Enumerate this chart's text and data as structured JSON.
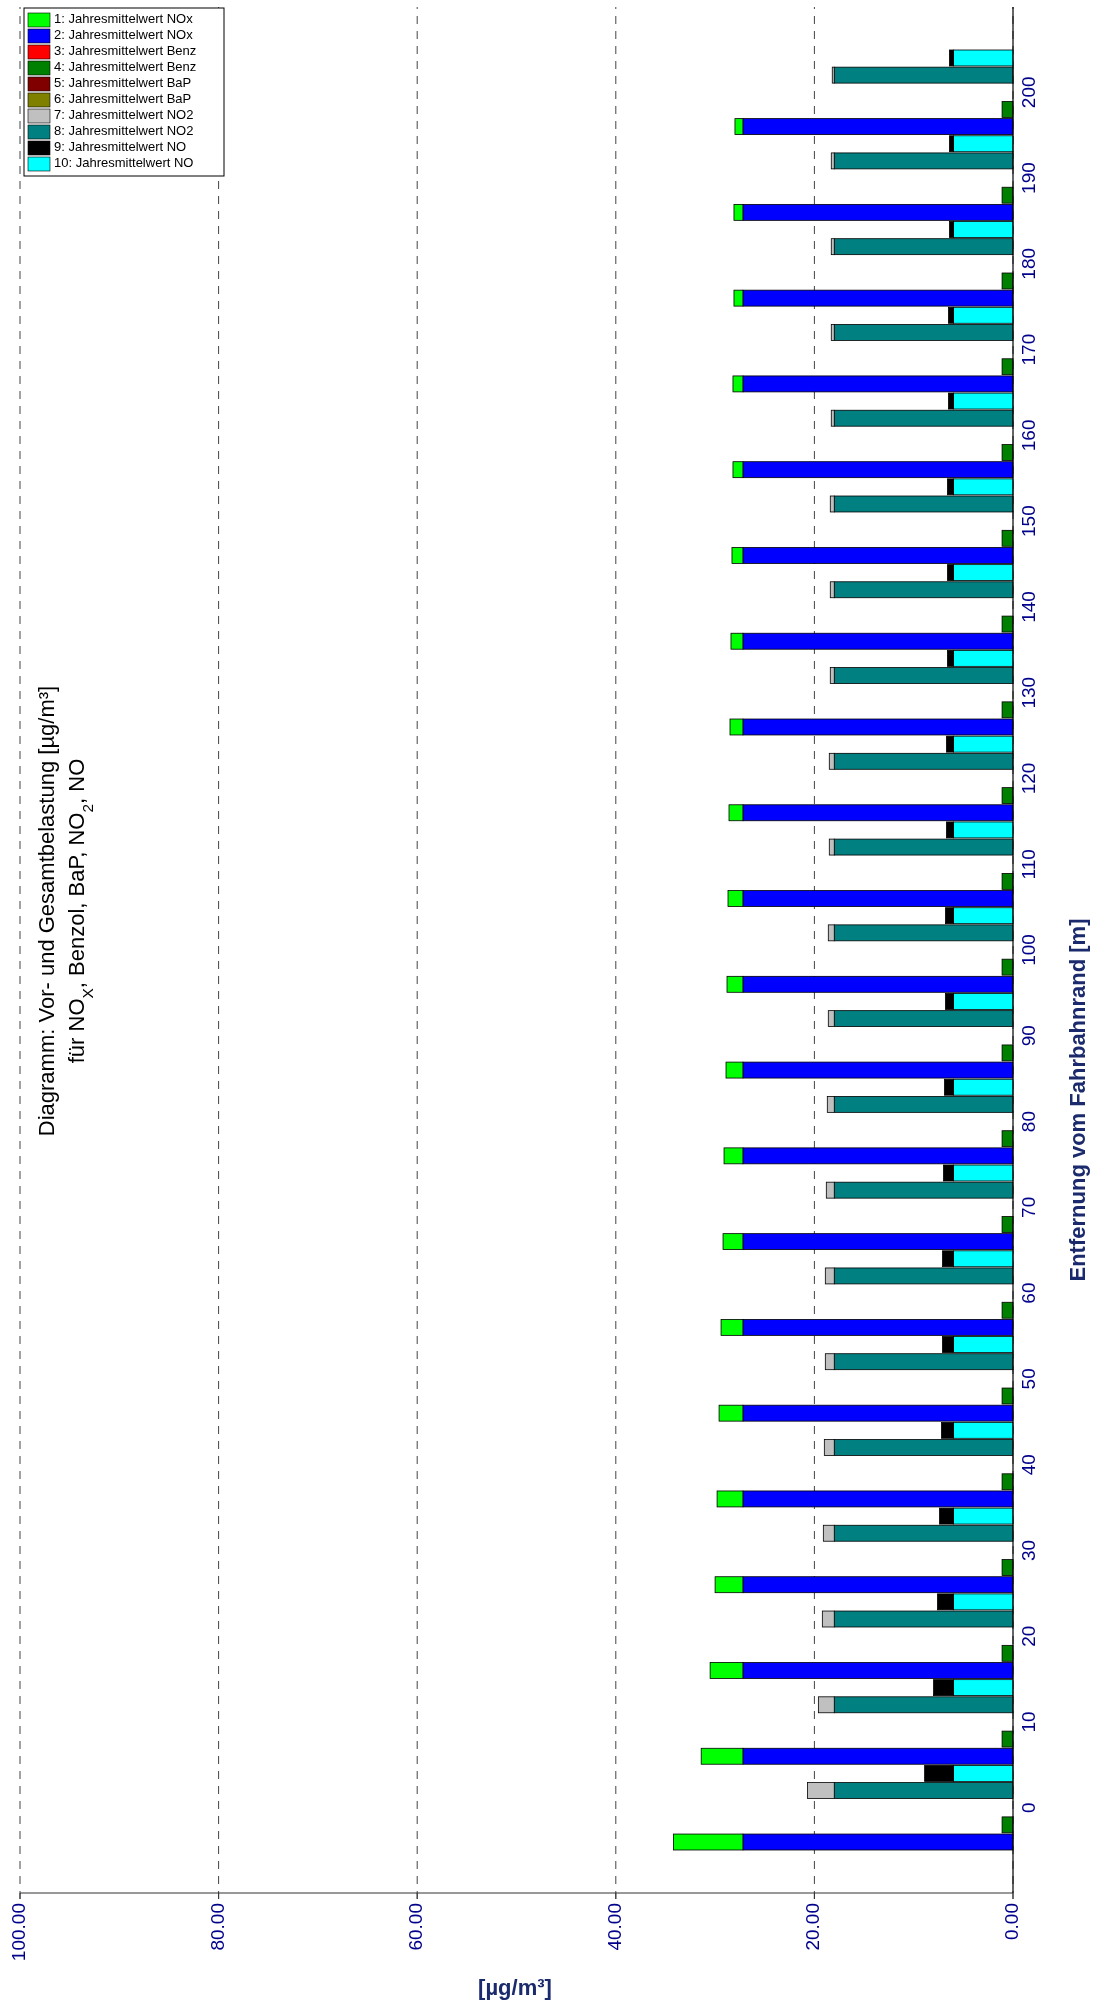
{
  "chart_data": {
    "type": "bar",
    "stacked": true,
    "orientation": "horizontal",
    "title": "Diagramm: Vor- und Gesamtbelastung [µg/m³]",
    "subtitle": "für NO$_{X}$, Benzol, BaP, NO$_{2}$, NO",
    "xlabel": "[µg/m³]",
    "ylabel": "Entfernung vom Fahrbahnrand [m]",
    "categories": [
      null,
      null,
      "200",
      null,
      null,
      null,
      null,
      "190",
      null,
      null,
      null,
      null,
      "180",
      null,
      null,
      null,
      null,
      "170",
      null,
      null,
      null,
      null,
      "160",
      null,
      null,
      null,
      null,
      "150",
      null,
      null,
      null,
      null,
      "140",
      null,
      null,
      null,
      null,
      "130",
      null,
      null,
      null,
      null,
      "120",
      null,
      null,
      null,
      null,
      "110",
      null,
      null,
      null,
      null,
      "100",
      null,
      null,
      null,
      null,
      "90",
      null,
      null,
      null,
      null,
      "80",
      null,
      null,
      null,
      null,
      "70",
      null,
      null,
      null,
      null,
      "60",
      null,
      null,
      null,
      null,
      "50",
      null,
      null,
      null,
      null,
      "40",
      null,
      null,
      null,
      null,
      "30",
      null,
      null,
      null,
      null,
      "20",
      null,
      null,
      null,
      null,
      "10",
      null,
      null,
      null,
      null,
      "0",
      null,
      null
    ],
    "xlim": [
      100,
      0
    ],
    "xticks": [
      {
        "value": 100,
        "label": "100.00"
      },
      {
        "value": 80,
        "label": "80.00"
      },
      {
        "value": 60,
        "label": "60.00"
      },
      {
        "value": 40,
        "label": "40.00"
      },
      {
        "value": 20,
        "label": "20.00"
      },
      {
        "value": 0,
        "label": "0.00"
      }
    ],
    "grid": "x",
    "legend": "top left",
    "series": [
      {
        "name": "2: Jahresmittelwert NOx",
        "color": "#0000ff",
        "values": [
          null,
          null,
          null,
          null,
          27.2,
          null,
          null,
          null,
          null,
          27.2,
          null,
          null,
          null,
          null,
          27.2,
          null,
          null,
          null,
          null,
          27.2,
          null,
          null,
          null,
          null,
          27.2,
          null,
          null,
          null,
          null,
          27.2,
          null,
          null,
          null,
          null,
          27.2,
          null,
          null,
          null,
          null,
          27.2,
          null,
          null,
          null,
          null,
          27.2,
          null,
          null,
          null,
          null,
          27.2,
          null,
          null,
          null,
          null,
          27.2,
          null,
          null,
          null,
          null,
          27.2,
          null,
          null,
          null,
          null,
          27.2,
          null,
          null,
          null,
          null,
          27.2,
          null,
          null,
          null,
          null,
          27.2,
          null,
          null,
          null,
          null,
          27.2,
          null,
          null,
          null,
          null,
          27.2,
          null,
          null,
          null,
          null,
          27.2,
          null,
          null,
          null,
          null,
          27.2,
          null,
          null,
          null,
          null,
          27.2,
          null,
          null,
          null,
          null,
          27.2
        ]
      },
      {
        "name": "1: Jahresmittelwert NOx",
        "color": "#00ff00",
        "values": [
          null,
          null,
          null,
          null,
          0.8,
          null,
          null,
          null,
          null,
          0.9,
          null,
          null,
          null,
          null,
          0.9,
          null,
          null,
          null,
          null,
          1.0,
          null,
          null,
          null,
          null,
          1.0,
          null,
          null,
          null,
          null,
          1.1,
          null,
          null,
          null,
          null,
          1.2,
          null,
          null,
          null,
          null,
          1.3,
          null,
          null,
          null,
          null,
          1.4,
          null,
          null,
          null,
          null,
          1.5,
          null,
          null,
          null,
          null,
          1.6,
          null,
          null,
          null,
          null,
          1.7,
          null,
          null,
          null,
          null,
          1.9,
          null,
          null,
          null,
          null,
          2.0,
          null,
          null,
          null,
          null,
          2.2,
          null,
          null,
          null,
          null,
          2.4,
          null,
          null,
          null,
          null,
          2.6,
          null,
          null,
          null,
          null,
          2.8,
          null,
          null,
          null,
          null,
          3.3,
          null,
          null,
          null,
          null,
          4.2,
          null,
          null,
          null,
          null,
          7.0
        ]
      },
      {
        "name": "4: Jahresmittelwert Benz",
        "color": "#008000",
        "values": [
          null,
          null,
          null,
          1.1,
          null,
          null,
          null,
          null,
          1.1,
          null,
          null,
          null,
          null,
          1.1,
          null,
          null,
          null,
          null,
          1.1,
          null,
          null,
          null,
          null,
          1.1,
          null,
          null,
          null,
          null,
          1.1,
          null,
          null,
          null,
          null,
          1.1,
          null,
          null,
          null,
          null,
          1.1,
          null,
          null,
          null,
          null,
          1.1,
          null,
          null,
          null,
          null,
          1.1,
          null,
          null,
          null,
          null,
          1.1,
          null,
          null,
          null,
          null,
          1.1,
          null,
          null,
          null,
          null,
          1.1,
          null,
          null,
          null,
          null,
          1.1,
          null,
          null,
          null,
          null,
          1.1,
          null,
          null,
          null,
          null,
          1.1,
          null,
          null,
          null,
          null,
          1.1,
          null,
          null,
          null,
          null,
          1.1,
          null,
          null,
          null,
          null,
          1.1,
          null,
          null,
          null,
          null,
          1.1,
          null,
          null,
          null,
          null,
          1.1,
          null
        ]
      },
      {
        "name": "3: Jahresmittelwert Benz",
        "color": "#ff0000",
        "values": [
          null,
          null,
          null,
          0,
          null,
          null,
          null,
          null,
          0,
          null,
          null,
          null,
          null,
          0,
          null,
          null,
          null,
          null,
          0,
          null,
          null,
          null,
          null,
          0,
          null,
          null,
          null,
          null,
          0,
          null,
          null,
          null,
          null,
          0,
          null,
          null,
          null,
          null,
          0,
          null,
          null,
          null,
          null,
          0,
          null,
          null,
          null,
          null,
          0,
          null,
          null,
          null,
          null,
          0,
          null,
          null,
          null,
          null,
          0,
          null,
          null,
          null,
          null,
          0,
          null,
          null,
          null,
          null,
          0,
          null,
          null,
          null,
          null,
          0,
          null,
          null,
          null,
          null,
          0,
          null,
          null,
          null,
          null,
          0,
          null,
          null,
          null,
          null,
          0,
          null,
          null,
          null,
          null,
          0,
          null,
          null,
          null,
          null,
          0,
          null,
          null,
          null,
          null,
          0,
          null
        ]
      },
      {
        "name": "6: Jahresmittelwert BaP",
        "color": "#808000",
        "values": [
          null,
          null,
          0,
          null,
          null,
          null,
          null,
          0,
          null,
          null,
          null,
          null,
          0,
          null,
          null,
          null,
          null,
          0,
          null,
          null,
          null,
          null,
          0,
          null,
          null,
          null,
          null,
          0,
          null,
          null,
          null,
          null,
          0,
          null,
          null,
          null,
          null,
          0,
          null,
          null,
          null,
          null,
          0,
          null,
          null,
          null,
          null,
          0,
          null,
          null,
          null,
          null,
          0,
          null,
          null,
          null,
          null,
          0,
          null,
          null,
          null,
          null,
          0,
          null,
          null,
          null,
          null,
          0,
          null,
          null,
          null,
          null,
          0,
          null,
          null,
          null,
          null,
          0,
          null,
          null,
          null,
          null,
          0,
          null,
          null,
          null,
          null,
          0,
          null,
          null,
          null,
          null,
          0,
          null,
          null,
          null,
          null,
          0,
          null,
          null,
          null,
          null,
          0,
          null,
          null
        ]
      },
      {
        "name": "5: Jahresmittelwert BaP",
        "color": "#800000",
        "values": [
          null,
          null,
          0,
          null,
          null,
          null,
          null,
          0,
          null,
          null,
          null,
          null,
          0,
          null,
          null,
          null,
          null,
          0,
          null,
          null,
          null,
          null,
          0,
          null,
          null,
          null,
          null,
          0,
          null,
          null,
          null,
          null,
          0,
          null,
          null,
          null,
          null,
          0,
          null,
          null,
          null,
          null,
          0,
          null,
          null,
          null,
          null,
          0,
          null,
          null,
          null,
          null,
          0,
          null,
          null,
          null,
          null,
          0,
          null,
          null,
          null,
          null,
          0,
          null,
          null,
          null,
          null,
          0,
          null,
          null,
          null,
          null,
          0,
          null,
          null,
          null,
          null,
          0,
          null,
          null,
          null,
          null,
          0,
          null,
          null,
          null,
          null,
          0,
          null,
          null,
          null,
          null,
          0,
          null,
          null,
          null,
          null,
          0,
          null,
          null,
          null,
          null,
          0,
          null,
          null
        ]
      },
      {
        "name": "8: Jahresmittelwert NO2",
        "color": "#008080",
        "values": [
          null,
          18.0,
          null,
          null,
          null,
          null,
          18.0,
          null,
          null,
          null,
          null,
          18.0,
          null,
          null,
          null,
          null,
          18.0,
          null,
          null,
          null,
          null,
          18.0,
          null,
          null,
          null,
          null,
          18.0,
          null,
          null,
          null,
          null,
          18.0,
          null,
          null,
          null,
          null,
          18.0,
          null,
          null,
          null,
          null,
          18.0,
          null,
          null,
          null,
          null,
          18.0,
          null,
          null,
          null,
          null,
          18.0,
          null,
          null,
          null,
          null,
          18.0,
          null,
          null,
          null,
          null,
          18.0,
          null,
          null,
          null,
          null,
          18.0,
          null,
          null,
          null,
          null,
          18.0,
          null,
          null,
          null,
          null,
          18.0,
          null,
          null,
          null,
          null,
          18.0,
          null,
          null,
          null,
          null,
          18.0,
          null,
          null,
          null,
          null,
          18.0,
          null,
          null,
          null,
          null,
          18.0,
          null,
          null,
          null,
          null,
          18.0,
          null,
          null,
          null
        ]
      },
      {
        "name": "7: Jahresmittelwert NO2",
        "color": "#c0c0c0",
        "values": [
          null,
          0.2,
          null,
          null,
          null,
          null,
          0.3,
          null,
          null,
          null,
          null,
          0.3,
          null,
          null,
          null,
          null,
          0.3,
          null,
          null,
          null,
          null,
          0.3,
          null,
          null,
          null,
          null,
          0.4,
          null,
          null,
          null,
          null,
          0.4,
          null,
          null,
          null,
          null,
          0.4,
          null,
          null,
          null,
          null,
          0.5,
          null,
          null,
          null,
          null,
          0.5,
          null,
          null,
          null,
          null,
          0.6,
          null,
          null,
          null,
          null,
          0.6,
          null,
          null,
          null,
          null,
          0.7,
          null,
          null,
          null,
          null,
          0.8,
          null,
          null,
          null,
          null,
          0.9,
          null,
          null,
          null,
          null,
          0.9,
          null,
          null,
          null,
          null,
          1.0,
          null,
          null,
          null,
          null,
          1.1,
          null,
          null,
          null,
          null,
          1.2,
          null,
          null,
          null,
          null,
          1.6,
          null,
          null,
          null,
          null,
          2.7,
          null,
          null,
          null
        ]
      },
      {
        "name": "10: Jahresmittelwert NO",
        "color": "#00ffff",
        "values": [
          6.0,
          null,
          null,
          null,
          null,
          6.0,
          null,
          null,
          null,
          null,
          6.0,
          null,
          null,
          null,
          null,
          6.0,
          null,
          null,
          null,
          null,
          6.0,
          null,
          null,
          null,
          null,
          6.0,
          null,
          null,
          null,
          null,
          6.0,
          null,
          null,
          null,
          null,
          6.0,
          null,
          null,
          null,
          null,
          6.0,
          null,
          null,
          null,
          null,
          6.0,
          null,
          null,
          null,
          null,
          6.0,
          null,
          null,
          null,
          null,
          6.0,
          null,
          null,
          null,
          null,
          6.0,
          null,
          null,
          null,
          null,
          6.0,
          null,
          null,
          null,
          null,
          6.0,
          null,
          null,
          null,
          null,
          6.0,
          null,
          null,
          null,
          null,
          6.0,
          null,
          null,
          null,
          null,
          6.0,
          null,
          null,
          null,
          null,
          6.0,
          null,
          null,
          null,
          null,
          6.0,
          null,
          null,
          null,
          null,
          6.0,
          null,
          null,
          null,
          null
        ]
      },
      {
        "name": "9: Jahresmittelwert NO",
        "color": "#000000",
        "values": [
          0.4,
          null,
          null,
          null,
          null,
          0.4,
          null,
          null,
          null,
          null,
          0.4,
          null,
          null,
          null,
          null,
          0.5,
          null,
          null,
          null,
          null,
          0.5,
          null,
          null,
          null,
          null,
          0.6,
          null,
          null,
          null,
          null,
          0.6,
          null,
          null,
          null,
          null,
          0.6,
          null,
          null,
          null,
          null,
          0.7,
          null,
          null,
          null,
          null,
          0.7,
          null,
          null,
          null,
          null,
          0.8,
          null,
          null,
          null,
          null,
          0.8,
          null,
          null,
          null,
          null,
          0.9,
          null,
          null,
          null,
          null,
          1.0,
          null,
          null,
          null,
          null,
          1.1,
          null,
          null,
          null,
          null,
          1.1,
          null,
          null,
          null,
          null,
          1.2,
          null,
          null,
          null,
          null,
          1.4,
          null,
          null,
          null,
          null,
          1.6,
          null,
          null,
          null,
          null,
          2.0,
          null,
          null,
          null,
          null,
          2.9,
          null,
          null,
          null,
          null
        ]
      }
    ]
  }
}
